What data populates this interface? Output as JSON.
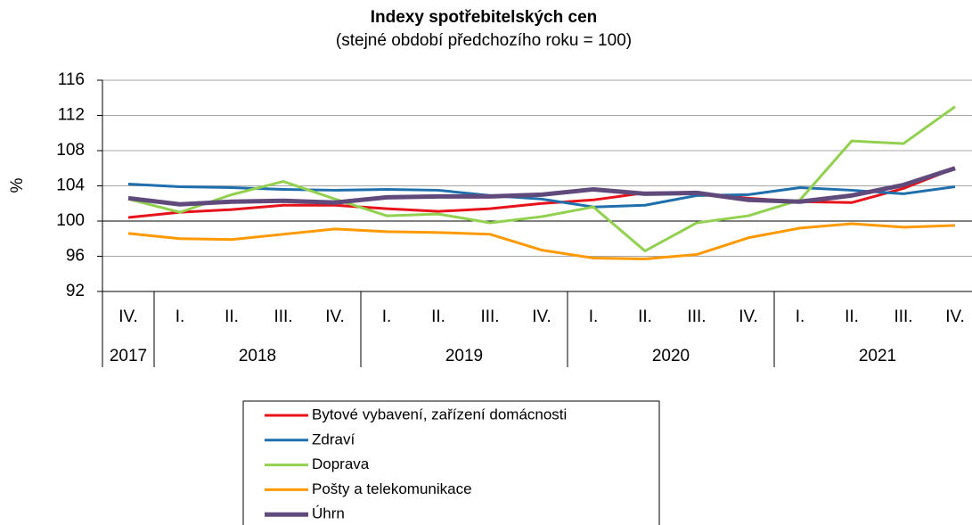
{
  "chart_data": {
    "type": "line",
    "title": "Indexy spotřebitelských cen",
    "subtitle": "(stejné období předchozího roku = 100)",
    "y_label": "%",
    "categories": [
      "IV.",
      "I.",
      "II.",
      "III.",
      "IV.",
      "I.",
      "II.",
      "III.",
      "IV.",
      "I.",
      "II.",
      "III.",
      "IV.",
      "I.",
      "II.",
      "III.",
      "IV."
    ],
    "x_groups": [
      {
        "label": "2017",
        "count": 1
      },
      {
        "label": "2018",
        "count": 4
      },
      {
        "label": "2019",
        "count": 4
      },
      {
        "label": "2020",
        "count": 4
      },
      {
        "label": "2021",
        "count": 4
      }
    ],
    "ylim": [
      92,
      116
    ],
    "yticks": [
      92,
      96,
      100,
      104,
      108,
      112,
      116
    ],
    "grid": true,
    "x_axis_at": 100,
    "series": [
      {
        "name": "Bytové vybavení, zařízení domácnosti",
        "color": "#e8121b",
        "values": [
          100.4,
          101.0,
          101.3,
          101.8,
          101.8,
          101.4,
          101.1,
          101.4,
          102.0,
          102.4,
          103.2,
          103.2,
          102.6,
          102.2,
          102.1,
          103.7,
          106.0
        ]
      },
      {
        "name": "Zdraví",
        "color": "#1f6fad",
        "values": [
          104.2,
          103.9,
          103.8,
          103.6,
          103.5,
          103.6,
          103.5,
          102.9,
          102.5,
          101.6,
          101.8,
          102.9,
          103.0,
          103.8,
          103.5,
          103.1,
          103.9
        ]
      },
      {
        "name": "Doprava",
        "color": "#92d050",
        "values": [
          102.5,
          101.0,
          103.0,
          104.5,
          102.5,
          100.6,
          100.8,
          99.8,
          100.5,
          101.6,
          96.6,
          99.8,
          100.6,
          102.4,
          109.1,
          108.8,
          113.0
        ]
      },
      {
        "name": "Pošty a telekomunikace",
        "color": "#ff9900",
        "values": [
          98.6,
          98.0,
          97.9,
          98.5,
          99.1,
          98.8,
          98.7,
          98.5,
          96.7,
          95.8,
          95.7,
          96.2,
          98.1,
          99.2,
          99.7,
          99.3,
          99.5
        ]
      },
      {
        "name": "Úhrn",
        "color": "#604a7b",
        "values": [
          102.6,
          101.9,
          102.2,
          102.3,
          102.1,
          102.7,
          102.8,
          102.8,
          103.0,
          103.6,
          103.1,
          103.2,
          102.4,
          102.2,
          102.9,
          104.1,
          106.0
        ]
      }
    ]
  }
}
